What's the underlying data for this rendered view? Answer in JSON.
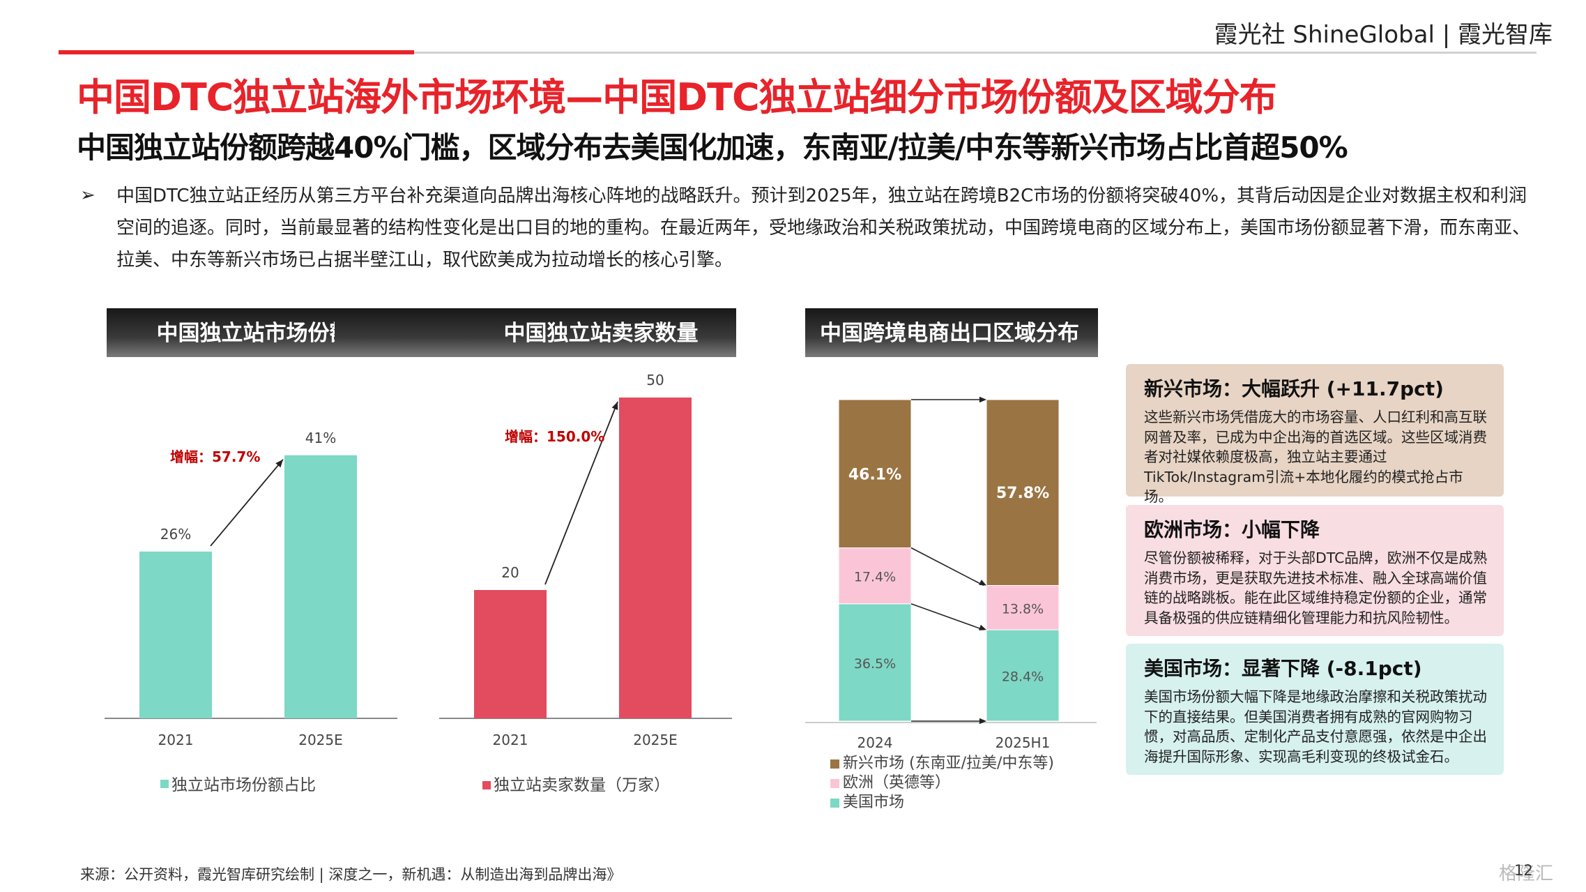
{
  "header": {
    "brand": "霞光社 ShineGlobal | 霞光智库",
    "title": "中国DTC独立站海外市场环境—中国DTC独立站细分市场份额及区域分布",
    "subtitle": "中国独立站份额跨越40%门槛，区域分布去美国化加速，东南亚/拉美/中东等新兴市场占比首超50%"
  },
  "bullet": {
    "marker": "➢",
    "text": "中国DTC独立站正经历从第三方平台补充渠道向品牌出海核心阵地的战略跃升。预计到2025年，独立站在跨境B2C市场的份额将突破40%，其背后动因是企业对数据主权和利润空间的追逐。同时，当前最显著的结构性变化是出口目的地的重构。在最近两年，受地缘政治和关税政策扰动，中国跨境电商的区域分布上，美国市场份额显著下滑，而东南亚、拉美、中东等新兴市场已占据半壁江山，取代欧美成为拉动增长的核心引擎。"
  },
  "chart_data": [
    {
      "type": "bar",
      "title": "中国独立站市场份额占比",
      "categories": [
        "2021",
        "2025E"
      ],
      "series": [
        {
          "name": "独立站市场份额占比",
          "values": [
            26,
            41
          ]
        }
      ],
      "data_labels": [
        "26%",
        "41%"
      ],
      "annotation": "增幅：57.7%",
      "color": "#7dd8c5",
      "ylim": [
        0,
        50
      ]
    },
    {
      "type": "bar",
      "title": "中国独立站卖家数量",
      "categories": [
        "2021",
        "2025E"
      ],
      "series": [
        {
          "name": "独立站卖家数量（万家）",
          "values": [
            20,
            50
          ]
        }
      ],
      "data_labels": [
        "20",
        "50"
      ],
      "annotation": "增幅：150.0%",
      "color": "#e34b5e",
      "ylim": [
        0,
        50
      ]
    },
    {
      "type": "bar",
      "stacked": true,
      "title": "中国跨境电商出口区域分布",
      "categories": [
        "2024",
        "2025H1"
      ],
      "series": [
        {
          "name": "美国市场",
          "values": [
            36.5,
            28.4
          ],
          "labels": [
            "36.5%",
            "28.4%"
          ],
          "color": "#7dd8c5"
        },
        {
          "name": "欧洲（英德等）",
          "values": [
            17.4,
            13.8
          ],
          "labels": [
            "17.4%",
            "13.8%"
          ],
          "color": "#fbc5d8"
        },
        {
          "name": "新兴市场 (东南亚/拉美/中东等)",
          "values": [
            46.1,
            57.8
          ],
          "labels": [
            "46.1%",
            "57.8%"
          ],
          "color": "#9b7444"
        }
      ],
      "legend_order": [
        "新兴市场 (东南亚/拉美/中东等)",
        "欧洲（英德等）",
        "美国市场"
      ],
      "legend": "bottom",
      "ylim": [
        0,
        100
      ]
    }
  ],
  "boxes": [
    {
      "heading": "新兴市场：大幅跃升 (+11.7pct)",
      "text": "这些新兴市场凭借庞大的市场容量、人口红利和高互联网普及率，已成为中企出海的首选区域。这些区域消费者对社媒依赖度极高，独立站主要通过TikTok/Instagram引流+本地化履约的模式抢占市场。"
    },
    {
      "heading": "欧洲市场：小幅下降",
      "text": "尽管份额被稀释，对于头部DTC品牌，欧洲不仅是成熟消费市场，更是获取先进技术标准、融入全球高端价值链的战略跳板。能在此区域维持稳定份额的企业，通常具备极强的供应链精细化管理能力和抗风险韧性。"
    },
    {
      "heading": "美国市场：显著下降 (-8.1pct)",
      "text": "美国市场份额大幅下降是地缘政治摩擦和关税政策扰动下的直接结果。但美国消费者拥有成熟的官网购物习惯，对高品质、定制化产品支付意愿强，依然是中企出海提升国际形象、实现高毛利变现的终极试金石。"
    }
  ],
  "footer": {
    "source": "来源：公开资料，霞光智库研究绘制 | 深度之一，新机遇：从制造出海到品牌出海》",
    "page": "12",
    "watermark": "格隆汇"
  }
}
